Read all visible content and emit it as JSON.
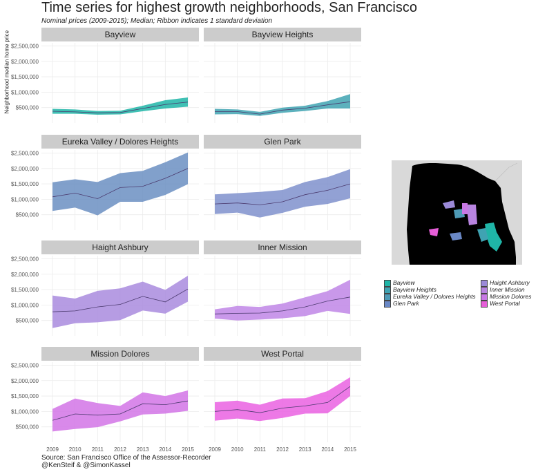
{
  "title": "Time series for highest growth neighborhoods, San Francisco",
  "subtitle": "Nominal prices (2009-2015); Median; Ribbon indicates 1 standard deviation",
  "caption_line1": "Source: San Francisco Office of the Assessor-Recorder",
  "caption_line2": "@KenSteif & @SimonKassel",
  "colors": {
    "Bayview": "#1fb5a7",
    "Bayview Heights": "#3fa3b2",
    "Eureka Valley / Dolores Heights": "#6b8fc2",
    "Glen Park": "#7f90cc",
    "Haight Ashbury": "#a98bde",
    "Inner Mission": "#bf86e6",
    "Mission Dolores": "#d274e6",
    "West Portal": "#ea62e2"
  },
  "legend": [
    {
      "label": "Bayview",
      "color": "#1fb5a7"
    },
    {
      "label": "Bayview Heights",
      "color": "#3fa3b2"
    },
    {
      "label": "Eureka Valley / Dolores Heights",
      "color": "#4e9ab6"
    },
    {
      "label": "Glen Park",
      "color": "#6a88c6"
    },
    {
      "label": "Haight Ashbury",
      "color": "#9b8ad8"
    },
    {
      "label": "Inner Mission",
      "color": "#b884e0"
    },
    {
      "label": "Mission Dolores",
      "color": "#c878e4"
    },
    {
      "label": "West Portal",
      "color": "#e65ed8"
    }
  ],
  "chart_data": {
    "type": "area",
    "ylabel": "Neighborhood median home price",
    "x": [
      2009,
      2010,
      2011,
      2012,
      2013,
      2014,
      2015
    ],
    "y_ticks": [
      "$500,000",
      "$1,000,000",
      "$1,500,000",
      "$2,000,000",
      "$2,500,000"
    ],
    "y_tick_values": [
      500000,
      1000000,
      1500000,
      2000000,
      2500000
    ],
    "ylim": [
      0,
      2600000
    ],
    "panels": [
      {
        "name": "Bayview",
        "median": [
          380000,
          360000,
          330000,
          340000,
          470000,
          600000,
          680000
        ],
        "lower": [
          300000,
          300000,
          270000,
          280000,
          380000,
          470000,
          530000
        ],
        "upper": [
          460000,
          440000,
          390000,
          400000,
          560000,
          740000,
          830000
        ]
      },
      {
        "name": "Bayview Heights",
        "median": [
          370000,
          370000,
          290000,
          420000,
          480000,
          590000,
          690000
        ],
        "lower": [
          280000,
          290000,
          230000,
          330000,
          390000,
          470000,
          470000
        ],
        "upper": [
          460000,
          440000,
          360000,
          500000,
          560000,
          710000,
          940000
        ]
      },
      {
        "name": "Eureka Valley / Dolores Heights",
        "median": [
          1080000,
          1200000,
          1020000,
          1380000,
          1420000,
          1680000,
          2000000
        ],
        "lower": [
          620000,
          730000,
          480000,
          920000,
          920000,
          1140000,
          1490000
        ],
        "upper": [
          1550000,
          1650000,
          1560000,
          1850000,
          1920000,
          2200000,
          2520000
        ]
      },
      {
        "name": "Glen Park",
        "median": [
          850000,
          880000,
          820000,
          920000,
          1150000,
          1290000,
          1500000
        ],
        "lower": [
          520000,
          570000,
          410000,
          560000,
          760000,
          850000,
          1030000
        ],
        "upper": [
          1160000,
          1200000,
          1240000,
          1300000,
          1560000,
          1720000,
          1980000
        ]
      },
      {
        "name": "Haight Ashbury",
        "median": [
          780000,
          810000,
          940000,
          1020000,
          1280000,
          1100000,
          1520000
        ],
        "lower": [
          250000,
          410000,
          440000,
          510000,
          820000,
          720000,
          1110000
        ],
        "upper": [
          1310000,
          1210000,
          1460000,
          1540000,
          1760000,
          1490000,
          1950000
        ]
      },
      {
        "name": "Inner Mission",
        "median": [
          710000,
          730000,
          740000,
          810000,
          940000,
          1130000,
          1260000
        ],
        "lower": [
          560000,
          500000,
          530000,
          570000,
          640000,
          810000,
          710000
        ],
        "upper": [
          860000,
          970000,
          940000,
          1050000,
          1250000,
          1450000,
          1820000
        ]
      },
      {
        "name": "Mission Dolores",
        "median": [
          710000,
          920000,
          880000,
          920000,
          1250000,
          1220000,
          1340000
        ],
        "lower": [
          350000,
          430000,
          490000,
          680000,
          900000,
          930000,
          1020000
        ],
        "upper": [
          1080000,
          1420000,
          1270000,
          1180000,
          1620000,
          1500000,
          1680000
        ]
      },
      {
        "name": "West Portal",
        "median": [
          1000000,
          1060000,
          960000,
          1110000,
          1180000,
          1290000,
          1810000
        ],
        "lower": [
          700000,
          770000,
          690000,
          790000,
          930000,
          940000,
          1500000
        ],
        "upper": [
          1300000,
          1350000,
          1220000,
          1420000,
          1430000,
          1660000,
          2110000
        ]
      }
    ]
  }
}
